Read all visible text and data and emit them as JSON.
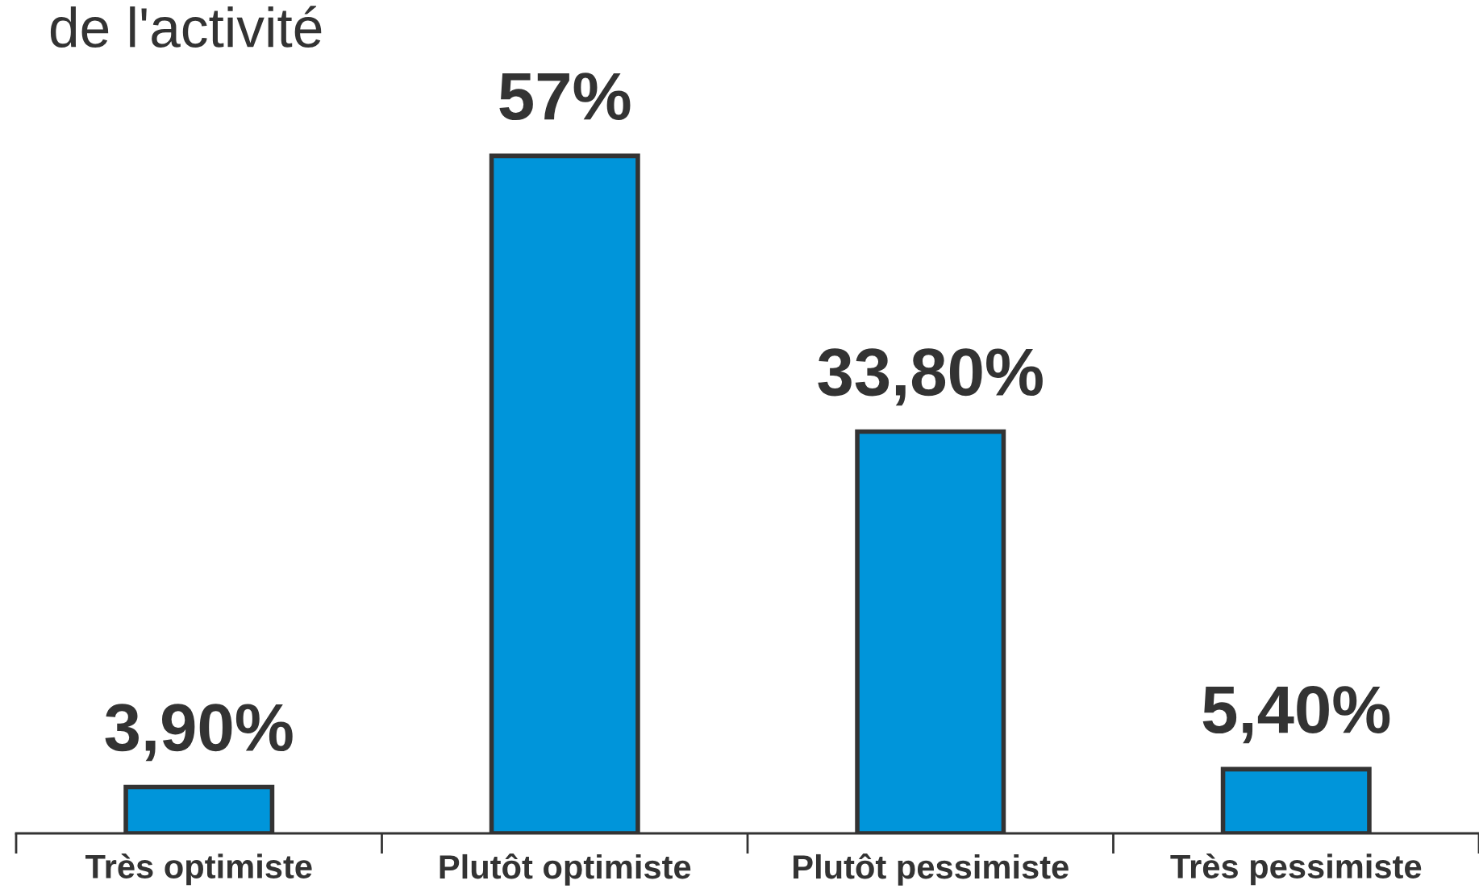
{
  "chart_data": {
    "type": "bar",
    "title": "de l'activité",
    "categories": [
      "Très optimiste",
      "Plutôt optimiste",
      "Plutôt pessimiste",
      "Très pessimiste"
    ],
    "values": [
      3.9,
      57,
      33.8,
      5.4
    ],
    "value_labels": [
      "3,90%",
      "57%",
      "33,80%",
      "5,40%"
    ],
    "color": "#0095da",
    "tick_labels": "x"
  }
}
